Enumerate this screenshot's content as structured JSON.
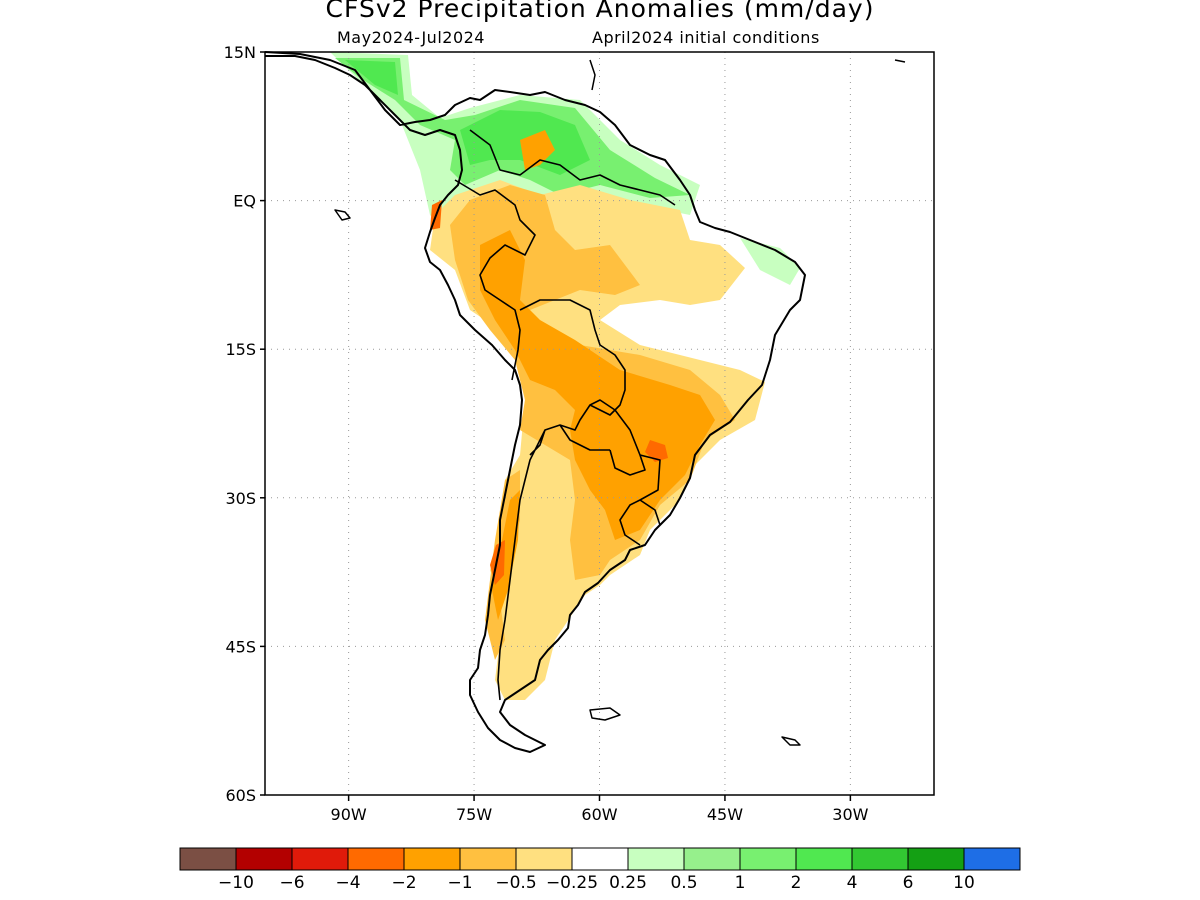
{
  "title": "CFSv2 Precipitation Anomalies (mm/day)",
  "subtitle_left": "May2024-Jul2024",
  "subtitle_right": "April2024 initial conditions",
  "map": {
    "region": "South America",
    "lon_range": [
      -100,
      -20
    ],
    "lat_range": [
      -60,
      15
    ],
    "grid": "dotted",
    "lat_ticks": [
      {
        "value": 15,
        "label": "15N"
      },
      {
        "value": 0,
        "label": "EQ"
      },
      {
        "value": -15,
        "label": "15S"
      },
      {
        "value": -30,
        "label": "30S"
      },
      {
        "value": -45,
        "label": "45S"
      },
      {
        "value": -60,
        "label": "60S"
      }
    ],
    "lon_ticks": [
      {
        "value": -90,
        "label": "90W"
      },
      {
        "value": -75,
        "label": "75W"
      },
      {
        "value": -60,
        "label": "60W"
      },
      {
        "value": -45,
        "label": "45W"
      },
      {
        "value": -30,
        "label": "30W"
      }
    ]
  },
  "colorbar": {
    "colors": [
      "#7b4f44",
      "#b30000",
      "#e01a0a",
      "#ff6a00",
      "#ffa100",
      "#ffc040",
      "#ffe080",
      "#ffffff",
      "#c8ffc0",
      "#96f08c",
      "#78f070",
      "#50e850",
      "#32c832",
      "#14a014",
      "#1e6ee6"
    ],
    "labels": [
      "-10",
      "-6",
      "-4",
      "-2",
      "-1",
      "-0.5",
      "-0.25",
      "0.25",
      "0.5",
      "1",
      "2",
      "4",
      "6",
      "10"
    ]
  }
}
